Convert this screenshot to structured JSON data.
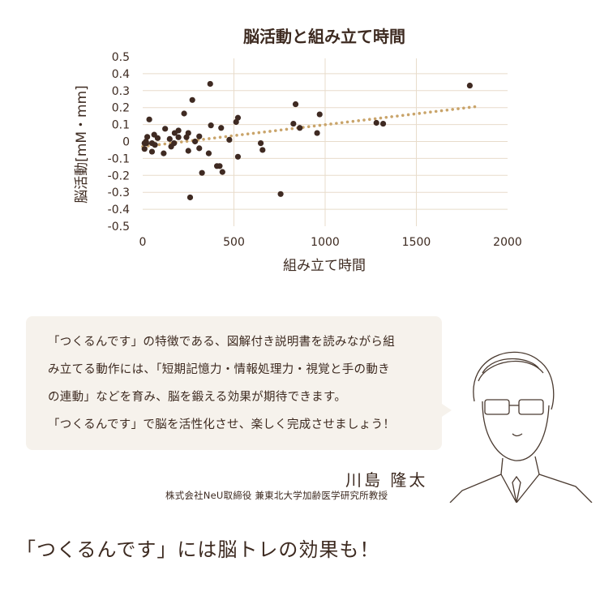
{
  "chart_data": {
    "type": "scatter",
    "title": "脳活動と組み立て時間",
    "xlabel": "組み立て時間",
    "ylabel": "脳活動[mM・mm]",
    "xlim": [
      0,
      2000
    ],
    "ylim": [
      -0.5,
      0.5
    ],
    "xticks": [
      "0",
      "500",
      "1000",
      "1500",
      "2000"
    ],
    "yticks": [
      "0.5",
      "0.4",
      "0.3",
      "0.2",
      "0.1",
      "0",
      "-0.1",
      "-0.2",
      "-0.3",
      "-0.4",
      "-0.5"
    ],
    "grid": true,
    "point_color": "#3f2a22",
    "trend_color": "#c9a46a",
    "trendline": {
      "style": "dotted",
      "x": [
        0,
        1820
      ],
      "y": [
        -0.03,
        0.205
      ]
    },
    "points": [
      [
        10,
        -0.044
      ],
      [
        10,
        -0.01
      ],
      [
        18,
        0.0
      ],
      [
        25,
        0.027
      ],
      [
        20,
        -0.01
      ],
      [
        36,
        0.13
      ],
      [
        51,
        -0.01
      ],
      [
        51,
        -0.06
      ],
      [
        63,
        0.04
      ],
      [
        67,
        -0.02
      ],
      [
        82,
        0.02
      ],
      [
        115,
        -0.07
      ],
      [
        123,
        0.075
      ],
      [
        148,
        0.015
      ],
      [
        156,
        -0.03
      ],
      [
        172,
        -0.01
      ],
      [
        175,
        0.05
      ],
      [
        196,
        0.065
      ],
      [
        196,
        0.025
      ],
      [
        227,
        0.165
      ],
      [
        240,
        0.025
      ],
      [
        250,
        0.05
      ],
      [
        250,
        -0.055
      ],
      [
        260,
        -0.33
      ],
      [
        272,
        0.245
      ],
      [
        287,
        0.0
      ],
      [
        310,
        0.03
      ],
      [
        310,
        -0.04
      ],
      [
        325,
        -0.185
      ],
      [
        362,
        -0.07
      ],
      [
        370,
        0.34
      ],
      [
        374,
        0.095
      ],
      [
        407,
        -0.145
      ],
      [
        422,
        -0.145
      ],
      [
        430,
        0.08
      ],
      [
        437,
        -0.18
      ],
      [
        475,
        0.01
      ],
      [
        512,
        0.115
      ],
      [
        522,
        0.14
      ],
      [
        522,
        -0.09
      ],
      [
        647,
        -0.01
      ],
      [
        657,
        -0.05
      ],
      [
        756,
        -0.31
      ],
      [
        826,
        0.105
      ],
      [
        838,
        0.22
      ],
      [
        861,
        0.08
      ],
      [
        956,
        0.05
      ],
      [
        970,
        0.16
      ],
      [
        1281,
        0.11
      ],
      [
        1318,
        0.105
      ],
      [
        1793,
        0.33
      ]
    ]
  },
  "quote": {
    "lines": [
      "「つくるんです」の特徴である、図解付き説明書を読みながら組",
      "み立てる動作には、「短期記憶力・情報処理力・視覚と手の動き",
      "の連動」などを育み、脳を鍛える効果が期待できます。",
      "「つくるんです」で脳を活性化させ、楽しく完成させましょう！"
    ]
  },
  "person": {
    "name": "川島 隆太",
    "affiliation": "株式会社NeU取締役 兼東北大学加齢医学研究所教授"
  },
  "headline": "「つくるんです」には脳トレの効果も！"
}
